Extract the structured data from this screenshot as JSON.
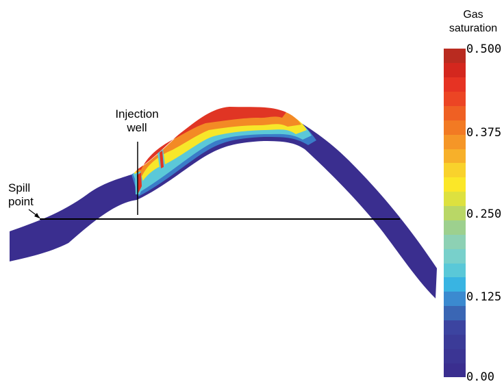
{
  "annotations": {
    "injection_well_line1": "Injection",
    "injection_well_line2": "well",
    "spill_point_line1": "Spill",
    "spill_point_line2": "point"
  },
  "colorbar": {
    "title_line1": "Gas",
    "title_line2": "saturation",
    "tick_labels": [
      "0.500",
      "0.375",
      "0.250",
      "0.125",
      "0.00"
    ],
    "range": [
      0.0,
      0.5
    ],
    "colors": [
      "#3a2e8f",
      "#3b3594",
      "#3b3b98",
      "#3c44a0",
      "#3a66b4",
      "#3b8ad0",
      "#39b4e2",
      "#5ac8d8",
      "#78d0cb",
      "#8dd1b4",
      "#9dd08e",
      "#b9d766",
      "#dde13f",
      "#fbe728",
      "#f9d22c",
      "#f7b02a",
      "#f59627",
      "#f27a23",
      "#ef6023",
      "#ec4524",
      "#e63323",
      "#d4271e",
      "#b92b20"
    ]
  },
  "layer": {
    "background_color": "#3a2e8f",
    "gas_plume_colors": [
      "#e03524",
      "#f38a25",
      "#f7e72a",
      "#5bc8d8",
      "#3a7cc8"
    ]
  }
}
